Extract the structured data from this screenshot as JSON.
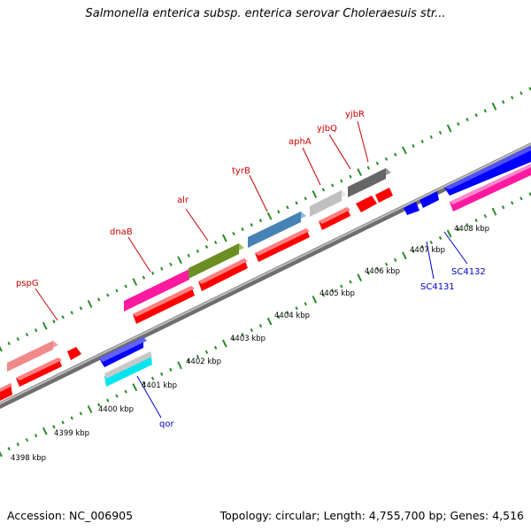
{
  "title": "Salmonella enterica subsp. enterica serovar Choleraesuis str...",
  "footer": {
    "accession": "Accession: NC_006905",
    "summary": "Topology: circular; Length: 4,755,700 bp; Genes: 4,516"
  },
  "colors": {
    "backbone": "#888888",
    "tick_top": "#2a8a2a",
    "tick_bottom": "#2a8a2a",
    "label_top": "#cc0000",
    "label_bottom": "#0000cc"
  },
  "kbp_labels": [
    "4398 kbp",
    "4399 kbp",
    "4400 kbp",
    "4401 kbp",
    "4402 kbp",
    "4403 kbp",
    "4404 kbp",
    "4405 kbp",
    "4406 kbp",
    "4407 kbp",
    "4408 kbp"
  ],
  "gene_labels_top": [
    "pspG",
    "dnaB",
    "alr",
    "tyrB",
    "aphA",
    "yjbQ",
    "yjbR"
  ],
  "gene_labels_bottom": [
    "qor",
    "SC4131",
    "SC4132"
  ]
}
